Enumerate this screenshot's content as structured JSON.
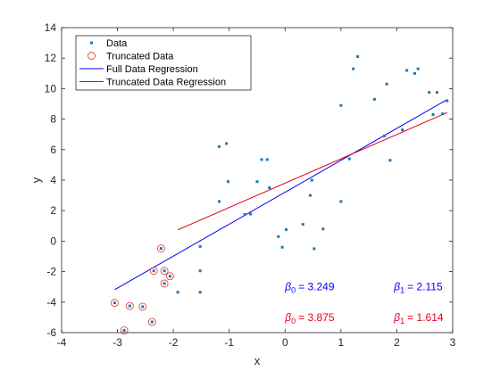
{
  "chart_data": {
    "type": "scatter",
    "xlabel": "x",
    "ylabel": "y",
    "xlim": [
      -4,
      3
    ],
    "ylim": [
      -6,
      14
    ],
    "xticks": [
      -4,
      -3,
      -2,
      -1,
      0,
      1,
      2,
      3
    ],
    "yticks": [
      -6,
      -4,
      -2,
      0,
      2,
      4,
      6,
      8,
      10,
      12,
      14
    ],
    "grid": false,
    "legend_position": "top-left",
    "colors": {
      "data": "#1f77b4",
      "truncated": "#e8473a",
      "full_fit": "#0000ff",
      "truncated_fit": "#e8001c",
      "axis": "#262626"
    },
    "series": [
      {
        "name": "Data",
        "kind": "points",
        "points": [
          [
            -3.05,
            -4.05
          ],
          [
            -2.88,
            -5.85
          ],
          [
            -2.78,
            -4.25
          ],
          [
            -2.55,
            -4.3
          ],
          [
            -2.38,
            -5.3
          ],
          [
            -2.35,
            -1.95
          ],
          [
            -2.22,
            -0.48
          ],
          [
            -2.16,
            -1.95
          ],
          [
            -2.16,
            -2.78
          ],
          [
            -2.06,
            -2.3
          ],
          [
            -1.92,
            -3.35
          ],
          [
            -1.52,
            -0.35
          ],
          [
            -1.52,
            -1.95
          ],
          [
            -1.52,
            -3.35
          ],
          [
            -1.18,
            2.6
          ],
          [
            -1.18,
            6.2
          ],
          [
            -1.05,
            6.4
          ],
          [
            -1.02,
            3.9
          ],
          [
            -0.72,
            1.75
          ],
          [
            -0.62,
            1.78
          ],
          [
            -0.5,
            3.9
          ],
          [
            -0.42,
            5.35
          ],
          [
            -0.32,
            5.35
          ],
          [
            -0.28,
            3.5
          ],
          [
            -0.12,
            0.3
          ],
          [
            -0.05,
            -0.4
          ],
          [
            0.02,
            0.75
          ],
          [
            0.32,
            1.1
          ],
          [
            0.45,
            3.0
          ],
          [
            0.48,
            4.0
          ],
          [
            0.52,
            -0.5
          ],
          [
            0.68,
            0.8
          ],
          [
            1.0,
            2.6
          ],
          [
            1.0,
            8.9
          ],
          [
            1.15,
            5.4
          ],
          [
            1.22,
            11.3
          ],
          [
            1.3,
            12.1
          ],
          [
            1.6,
            9.3
          ],
          [
            1.78,
            6.9
          ],
          [
            1.82,
            10.3
          ],
          [
            1.88,
            5.3
          ],
          [
            2.1,
            7.3
          ],
          [
            2.18,
            11.2
          ],
          [
            2.32,
            11.0
          ],
          [
            2.38,
            11.3
          ],
          [
            2.58,
            9.75
          ],
          [
            2.65,
            8.3
          ],
          [
            2.72,
            9.75
          ],
          [
            2.82,
            8.35
          ],
          [
            2.9,
            9.2
          ]
        ]
      },
      {
        "name": "Truncated Data",
        "kind": "circles",
        "points": [
          [
            -3.05,
            -4.05
          ],
          [
            -2.88,
            -5.85
          ],
          [
            -2.78,
            -4.25
          ],
          [
            -2.55,
            -4.3
          ],
          [
            -2.38,
            -5.3
          ],
          [
            -2.35,
            -1.95
          ],
          [
            -2.22,
            -0.48
          ],
          [
            -2.16,
            -1.95
          ],
          [
            -2.16,
            -2.78
          ],
          [
            -2.06,
            -2.3
          ]
        ]
      },
      {
        "name": "Full Data Regression",
        "kind": "line",
        "points": [
          [
            -3.05,
            -3.18
          ],
          [
            2.9,
            9.28
          ]
        ]
      },
      {
        "name": "Truncated Data Regression",
        "kind": "line",
        "points": [
          [
            -1.92,
            0.74
          ],
          [
            2.9,
            8.43
          ]
        ]
      }
    ],
    "annotations": [
      {
        "name": "full_beta0",
        "symbol": "β",
        "sub": "0",
        "text": "=  3.249",
        "x": 0.0,
        "y": -3.0,
        "color": "#0000ff"
      },
      {
        "name": "full_beta1",
        "symbol": "β",
        "sub": "1",
        "text": "=  2.115",
        "x": 1.95,
        "y": -3.0,
        "color": "#0000ff"
      },
      {
        "name": "trunc_beta0",
        "symbol": "β",
        "sub": "0",
        "text": "=  3.875",
        "x": 0.0,
        "y": -5.0,
        "color": "#e8001c"
      },
      {
        "name": "trunc_beta1",
        "symbol": "β",
        "sub": "1",
        "text": "=  1.614",
        "x": 1.95,
        "y": -5.0,
        "color": "#e8001c"
      }
    ]
  }
}
